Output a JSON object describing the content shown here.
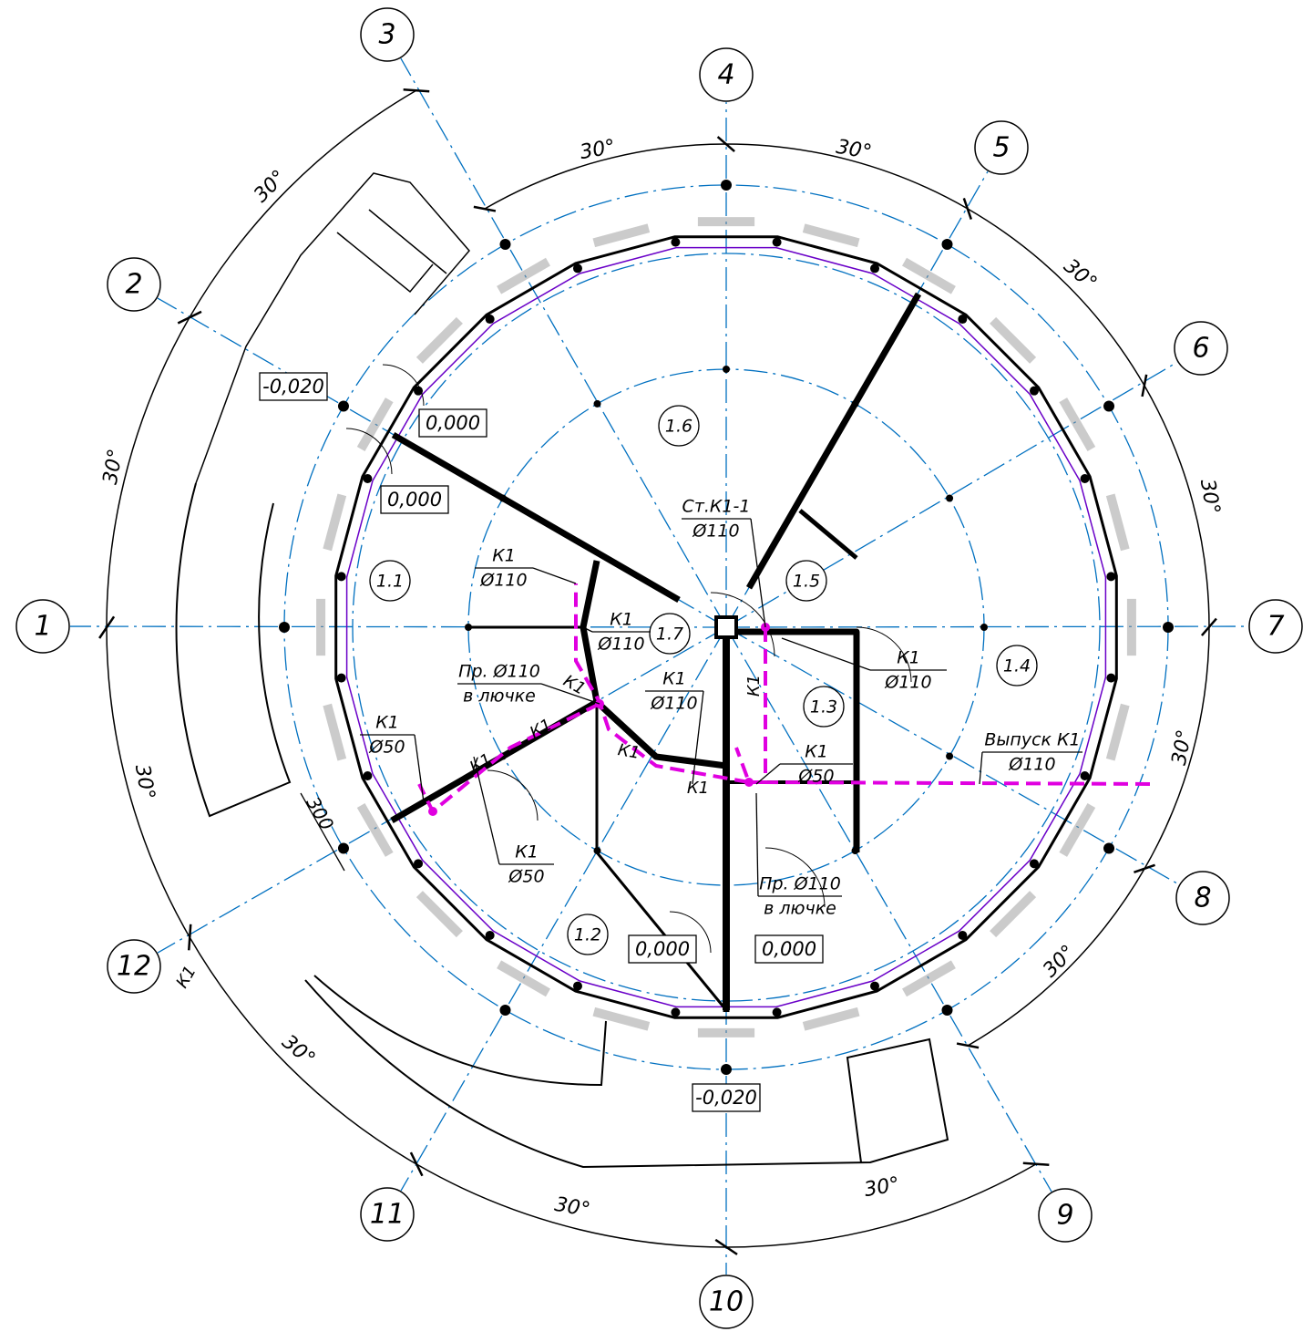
{
  "axes": [
    "1",
    "2",
    "3",
    "4",
    "5",
    "6",
    "7",
    "8",
    "9",
    "10",
    "11",
    "12"
  ],
  "angles": [
    "30°",
    "30°",
    "30°",
    "30°",
    "30°",
    "30°",
    "30°",
    "30°",
    "30°",
    "30°",
    "30°",
    "30°"
  ],
  "levels": [
    "-0,020",
    "0,000",
    "0,000",
    "0,000",
    "0,000",
    "-0,020"
  ],
  "rooms": [
    "1.1",
    "1.2",
    "1.3",
    "1.4",
    "1.5",
    "1.6",
    "1.7"
  ],
  "callouts": [
    {
      "top": "Ст.К1-1",
      "bottom": "Ø110"
    },
    {
      "top": "К1",
      "bottom": "Ø110"
    },
    {
      "top": "К1",
      "bottom": "Ø110"
    },
    {
      "top": "Пр. Ø110",
      "bottom": "в лючке"
    },
    {
      "top": "К1",
      "bottom": "Ø110"
    },
    {
      "top": "К1",
      "bottom": "Ø110"
    },
    {
      "top": "К1",
      "bottom": "Ø50"
    },
    {
      "top": "Выпуск К1",
      "bottom": "Ø110"
    },
    {
      "top": "К1",
      "bottom": "Ø50"
    },
    {
      "top": "К1",
      "bottom": "Ø50"
    },
    {
      "top": "Пр. Ø110",
      "bottom": "в лючке"
    }
  ],
  "pipe_tags": [
    "К1",
    "К1",
    "К1",
    "К1",
    "К1",
    "К1",
    "К1"
  ],
  "dimension": "300"
}
